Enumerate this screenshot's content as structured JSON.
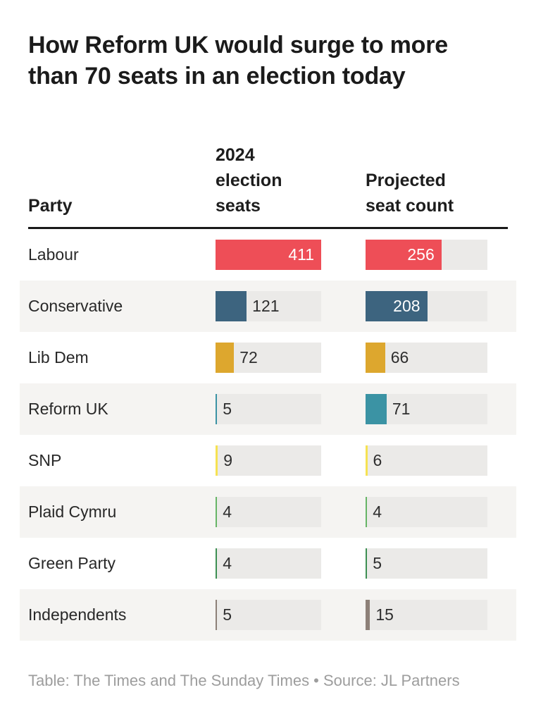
{
  "title": "How Reform UK would surge to more than 70 seats in an election today",
  "table": {
    "party_header": "Party",
    "col1_header": "2024 election seats",
    "col2_header": "Projected seat count",
    "max_seats": 411,
    "rows": [
      {
        "party": "Labour",
        "seats2024": 411,
        "projected": 256,
        "color": "#ee4e57"
      },
      {
        "party": "Conservative",
        "seats2024": 121,
        "projected": 208,
        "color": "#3d647f"
      },
      {
        "party": "Lib Dem",
        "seats2024": 72,
        "projected": 66,
        "color": "#dda72e"
      },
      {
        "party": "Reform UK",
        "seats2024": 5,
        "projected": 71,
        "color": "#3b93a4"
      },
      {
        "party": "SNP",
        "seats2024": 9,
        "projected": 6,
        "color": "#f6e252"
      },
      {
        "party": "Plaid Cymru",
        "seats2024": 4,
        "projected": 4,
        "color": "#66b566"
      },
      {
        "party": "Green Party",
        "seats2024": 4,
        "projected": 5,
        "color": "#3c8f52"
      },
      {
        "party": "Independents",
        "seats2024": 5,
        "projected": 15,
        "color": "#8d8078"
      }
    ]
  },
  "footer": "Table: The Times and The Sunday Times • Source: JL Partners",
  "ui_colors": {
    "bar_track": "#ebeae8",
    "row_stripe": "#f5f4f2",
    "header_rule": "#191919",
    "title_text": "#1b1b1b",
    "body_text": "#282828",
    "footer_text": "#9d9d9d",
    "inside_label_text": "#ffffff"
  },
  "chart_data": {
    "type": "table",
    "title": "How Reform UK would surge to more than 70 seats in an election today",
    "categories": [
      "Labour",
      "Conservative",
      "Lib Dem",
      "Reform UK",
      "SNP",
      "Plaid Cymru",
      "Green Party",
      "Independents"
    ],
    "series": [
      {
        "name": "2024 election seats",
        "values": [
          411,
          121,
          72,
          5,
          9,
          4,
          4,
          5
        ]
      },
      {
        "name": "Projected seat count",
        "values": [
          256,
          208,
          66,
          71,
          6,
          4,
          5,
          15
        ]
      }
    ],
    "bar_colors": [
      "#ee4e57",
      "#3d647f",
      "#dda72e",
      "#3b93a4",
      "#f6e252",
      "#66b566",
      "#3c8f52",
      "#8d8078"
    ],
    "xlim": [
      0,
      411
    ],
    "value_labels": true,
    "grid": false,
    "legend_position": "column-headers",
    "note": "Horizontal bars embedded per table row; both columns scaled to max 411 seats"
  }
}
